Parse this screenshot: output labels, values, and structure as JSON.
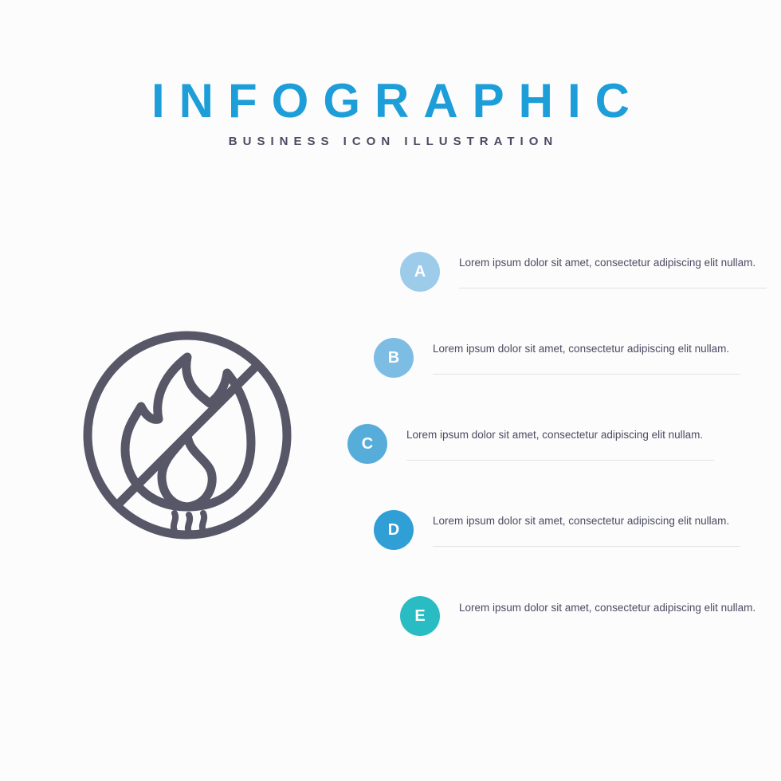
{
  "header": {
    "title": "INFOGRAPHIC",
    "title_color": "#1d9ed9",
    "subtitle": "BUSINESS ICON ILLUSTRATION",
    "subtitle_color": "#4b4b63"
  },
  "icon": {
    "name": "no-fire-icon",
    "stroke_color": "#575768",
    "stroke_width": 11
  },
  "layout": {
    "step_x_offsets": [
      66,
      33,
      0,
      33,
      66
    ],
    "step_y_step": 108
  },
  "steps": [
    {
      "letter": "A",
      "badge_color": "#9dcbea",
      "text": "Lorem ipsum dolor sit amet, consectetur adipiscing elit nullam.",
      "text_color": "#4b4b63"
    },
    {
      "letter": "B",
      "badge_color": "#7dbde4",
      "text": "Lorem ipsum dolor sit amet, consectetur adipiscing elit nullam.",
      "text_color": "#4b4b63"
    },
    {
      "letter": "C",
      "badge_color": "#57add9",
      "text": "Lorem ipsum dolor sit amet, consectetur adipiscing elit nullam.",
      "text_color": "#4b4b63"
    },
    {
      "letter": "D",
      "badge_color": "#2f9fd6",
      "text": "Lorem ipsum dolor sit amet, consectetur adipiscing elit nullam.",
      "text_color": "#4b4b63"
    },
    {
      "letter": "E",
      "badge_color": "#29bcc3",
      "text": "Lorem ipsum dolor sit amet, consectetur adipiscing elit nullam.",
      "text_color": "#4b4b63"
    }
  ]
}
